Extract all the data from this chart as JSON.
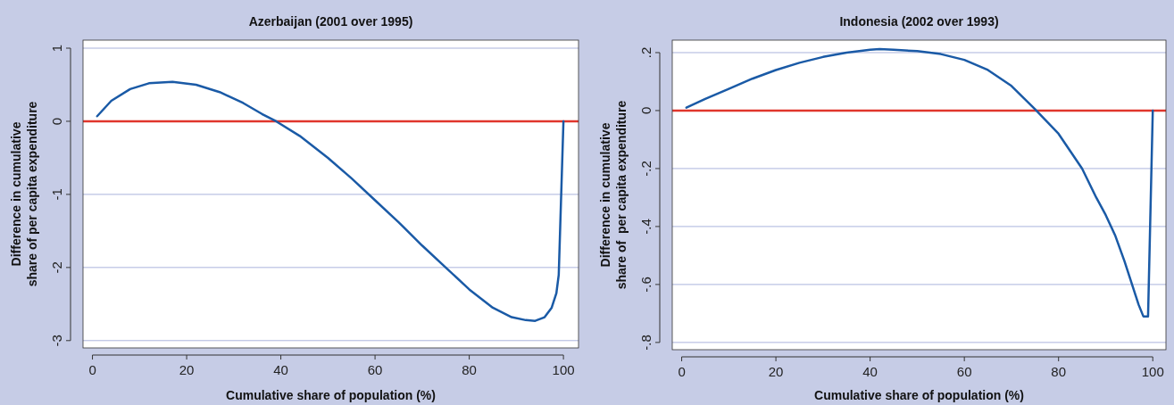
{
  "chart_data": [
    {
      "type": "line",
      "title": "Azerbaijan (2001 over 1995)",
      "xlabel": "Cumulative share of population (%)",
      "ylabel": "Difference in cumulative\nshare of per capita expenditure",
      "xlim": [
        -2,
        103.2
      ],
      "ylim": [
        -3.1,
        1.11
      ],
      "xticks": [
        0,
        20,
        40,
        60,
        80,
        100
      ],
      "yticks": [
        -3,
        -2,
        -1,
        0,
        1
      ],
      "grid": "y",
      "ref_lines": [
        {
          "axis": "y",
          "value": 0,
          "color": "#e0362c"
        }
      ],
      "series": [
        {
          "color": "#1a5aa6",
          "x": [
            1,
            4,
            8,
            12,
            17,
            22,
            27,
            32,
            36,
            39,
            44,
            50,
            55,
            60,
            65,
            70,
            75,
            80,
            85,
            89,
            92,
            94,
            96,
            97.5,
            98.5,
            99,
            100
          ],
          "values": [
            0.07,
            0.28,
            0.44,
            0.52,
            0.54,
            0.5,
            0.4,
            0.25,
            0.1,
            0,
            -0.2,
            -0.5,
            -0.78,
            -1.08,
            -1.38,
            -1.7,
            -2.0,
            -2.3,
            -2.55,
            -2.68,
            -2.72,
            -2.73,
            -2.68,
            -2.55,
            -2.35,
            -2.1,
            0
          ]
        }
      ]
    },
    {
      "type": "line",
      "title": "Indonesia (2002 over 1993)",
      "xlabel": "Cumulative share of population (%)",
      "ylabel": "Difference in cumulative\nshare of  per capita expenditure",
      "xlim": [
        -2,
        102.8
      ],
      "ylim": [
        -0.825,
        0.243
      ],
      "xticks": [
        0,
        20,
        40,
        60,
        80,
        100
      ],
      "yticks": [
        {
          "value": -0.8,
          "label": "-.8"
        },
        {
          "value": -0.6,
          "label": "-.6"
        },
        {
          "value": -0.4,
          "label": "-.4"
        },
        {
          "value": -0.2,
          "label": "-.2"
        },
        0,
        {
          "value": 0.2,
          "label": ".2"
        }
      ],
      "grid": "y",
      "ref_lines": [
        {
          "axis": "y",
          "value": 0,
          "color": "#e0362c"
        }
      ],
      "series": [
        {
          "color": "#1a5aa6",
          "x": [
            1,
            5,
            10,
            15,
            20,
            25,
            30,
            35,
            40,
            42,
            45,
            50,
            55,
            60,
            65,
            70,
            75,
            80,
            85,
            88,
            90,
            92,
            94,
            96,
            97,
            98,
            99,
            100
          ],
          "values": [
            0.01,
            0.04,
            0.075,
            0.11,
            0.14,
            0.165,
            0.185,
            0.2,
            0.21,
            0.212,
            0.21,
            0.205,
            0.195,
            0.175,
            0.14,
            0.085,
            0.005,
            -0.08,
            -0.2,
            -0.3,
            -0.36,
            -0.43,
            -0.52,
            -0.62,
            -0.67,
            -0.71,
            -0.71,
            0
          ]
        }
      ]
    }
  ]
}
